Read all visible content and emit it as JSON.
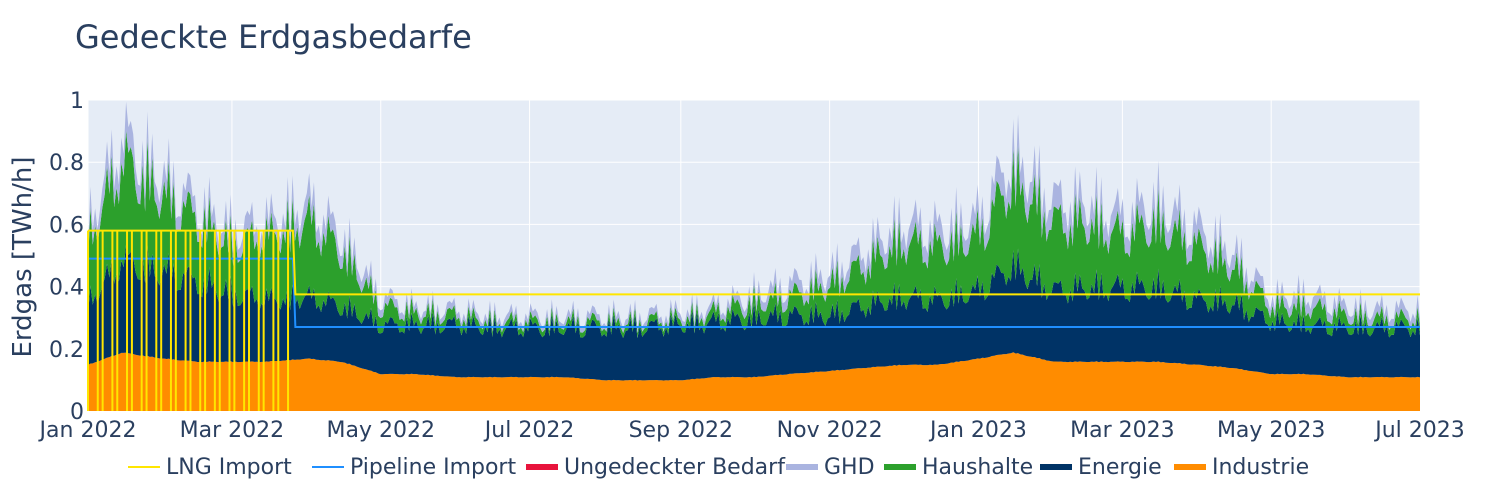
{
  "chart_data": {
    "type": "area",
    "title": "Gedeckte Erdgasbedarfe",
    "ylabel": "Erdgas [TWh/h]",
    "xlabel": "",
    "ylim": [
      0,
      1
    ],
    "xlim": [
      "2022-01-01",
      "2023-07-01"
    ],
    "x_tick_labels": [
      "Jan 2022",
      "Mar 2022",
      "May 2022",
      "Jul 2022",
      "Sep 2022",
      "Nov 2022",
      "Jan 2023",
      "Mar 2023",
      "May 2023",
      "Jul 2023"
    ],
    "x_tick_dates": [
      "2022-01-01",
      "2022-03-01",
      "2022-05-01",
      "2022-07-01",
      "2022-09-01",
      "2022-11-01",
      "2023-01-01",
      "2023-03-01",
      "2023-05-01",
      "2023-07-01"
    ],
    "y_ticks": [
      0,
      0.2,
      0.4,
      0.6,
      0.8,
      1
    ],
    "y_tick_labels": [
      "0",
      "0.2",
      "0.4",
      "0.6",
      "0.8",
      "1"
    ],
    "grid": true,
    "legend_position": "bottom",
    "legend": [
      "LNG Import",
      "Pipeline Import",
      "Ungedeckter Bedarf",
      "GHD",
      "Haushalte",
      "Energie",
      "Industrie"
    ],
    "x": [
      "2022-01-01",
      "2022-01-15",
      "2022-02-01",
      "2022-02-15",
      "2022-03-01",
      "2022-03-15",
      "2022-04-01",
      "2022-04-15",
      "2022-05-01",
      "2022-05-15",
      "2022-06-01",
      "2022-06-15",
      "2022-07-01",
      "2022-07-15",
      "2022-08-01",
      "2022-08-15",
      "2022-09-01",
      "2022-09-15",
      "2022-10-01",
      "2022-10-15",
      "2022-11-01",
      "2022-11-15",
      "2022-12-01",
      "2022-12-15",
      "2023-01-01",
      "2023-01-15",
      "2023-02-01",
      "2023-02-15",
      "2023-03-01",
      "2023-03-15",
      "2023-04-01",
      "2023-04-15",
      "2023-05-01",
      "2023-05-15",
      "2023-06-01",
      "2023-06-15",
      "2023-07-01"
    ],
    "series": [
      {
        "name": "Industrie",
        "kind": "stack",
        "color": "#ff8c00",
        "values": [
          0.15,
          0.19,
          0.17,
          0.16,
          0.16,
          0.16,
          0.17,
          0.16,
          0.12,
          0.12,
          0.11,
          0.11,
          0.11,
          0.11,
          0.1,
          0.1,
          0.1,
          0.11,
          0.11,
          0.12,
          0.13,
          0.14,
          0.15,
          0.15,
          0.17,
          0.19,
          0.16,
          0.16,
          0.16,
          0.16,
          0.15,
          0.14,
          0.12,
          0.12,
          0.11,
          0.11,
          0.11
        ]
      },
      {
        "name": "Energie",
        "kind": "stack",
        "color": "#003366",
        "values": [
          0.2,
          0.3,
          0.28,
          0.26,
          0.22,
          0.2,
          0.2,
          0.18,
          0.16,
          0.16,
          0.17,
          0.16,
          0.16,
          0.16,
          0.17,
          0.17,
          0.18,
          0.18,
          0.19,
          0.19,
          0.18,
          0.2,
          0.22,
          0.21,
          0.22,
          0.28,
          0.23,
          0.24,
          0.24,
          0.24,
          0.21,
          0.21,
          0.17,
          0.16,
          0.16,
          0.16,
          0.16
        ]
      },
      {
        "name": "Haushalte",
        "kind": "stack",
        "color": "#2ca02c",
        "values": [
          0.2,
          0.32,
          0.25,
          0.2,
          0.16,
          0.2,
          0.25,
          0.18,
          0.06,
          0.04,
          0.03,
          0.02,
          0.02,
          0.02,
          0.02,
          0.02,
          0.02,
          0.03,
          0.05,
          0.06,
          0.1,
          0.13,
          0.18,
          0.17,
          0.18,
          0.28,
          0.22,
          0.21,
          0.17,
          0.21,
          0.17,
          0.12,
          0.05,
          0.06,
          0.04,
          0.03,
          0.03
        ]
      },
      {
        "name": "GHD",
        "kind": "stack",
        "color": "#aab4e0",
        "values": [
          0.05,
          0.08,
          0.06,
          0.05,
          0.05,
          0.05,
          0.06,
          0.05,
          0.03,
          0.02,
          0.02,
          0.02,
          0.02,
          0.02,
          0.02,
          0.02,
          0.02,
          0.02,
          0.03,
          0.04,
          0.04,
          0.05,
          0.06,
          0.06,
          0.06,
          0.08,
          0.07,
          0.07,
          0.06,
          0.07,
          0.06,
          0.05,
          0.03,
          0.04,
          0.03,
          0.03,
          0.03
        ]
      },
      {
        "name": "Ungedeckter Bedarf",
        "kind": "line",
        "color": "#e8143c",
        "values": [
          0,
          0,
          0,
          0,
          0,
          0,
          0,
          0,
          0,
          0,
          0,
          0,
          0,
          0,
          0,
          0,
          0,
          0,
          0,
          0,
          0,
          0,
          0,
          0,
          0,
          0,
          0,
          0,
          0,
          0,
          0,
          0,
          0,
          0,
          0,
          0,
          0
        ]
      },
      {
        "name": "Pipeline Import",
        "kind": "line",
        "color": "#1f8fff",
        "points": [
          [
            "2022-01-01",
            0.49
          ],
          [
            "2022-03-26",
            0.49
          ],
          [
            "2022-03-27",
            0.27
          ],
          [
            "2023-07-01",
            0.27
          ]
        ]
      },
      {
        "name": "LNG Import",
        "kind": "line",
        "color": "#ffe600",
        "points": [
          [
            "2022-01-01",
            0.58
          ],
          [
            "2022-03-26",
            0.58
          ],
          [
            "2022-03-27",
            0.375
          ],
          [
            "2023-07-01",
            0.375
          ]
        ]
      }
    ]
  }
}
